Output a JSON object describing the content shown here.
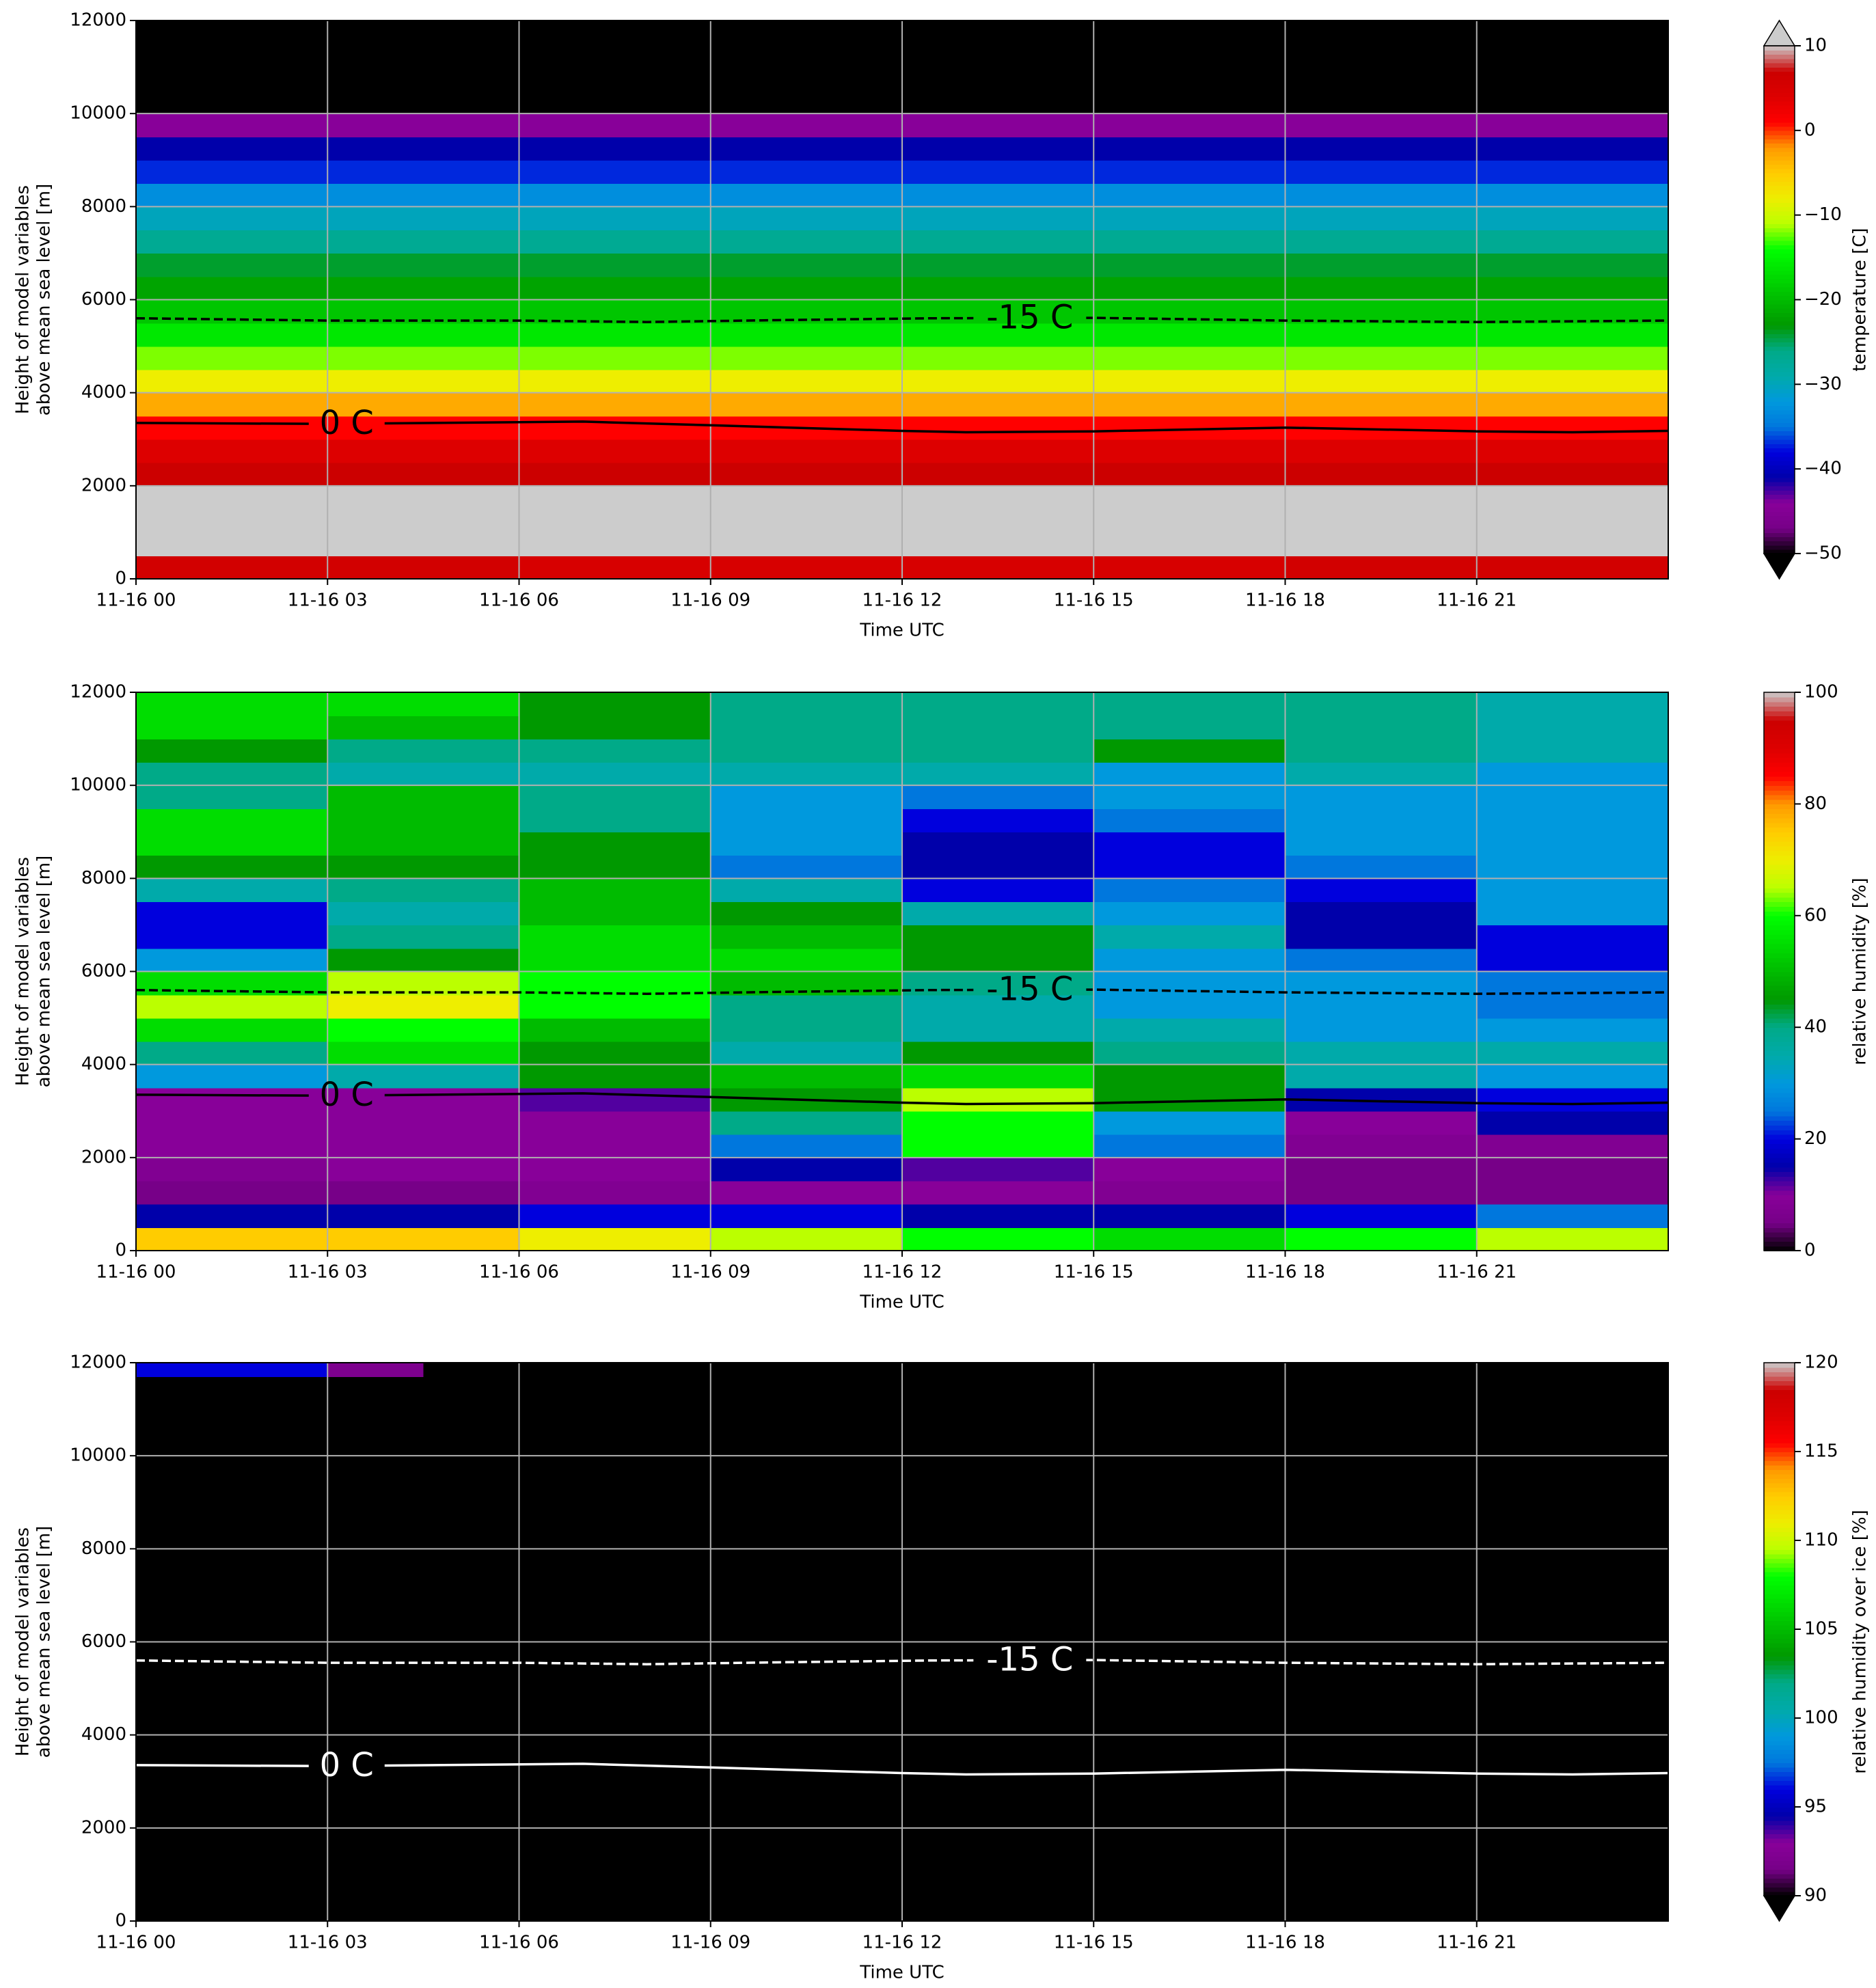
{
  "chart_data": [
    {
      "type": "heatmap",
      "colormap": "nipy_spectral",
      "extend": "both",
      "under_color": "#000000",
      "over_color": "#cccccc",
      "xlabel": "Time UTC",
      "ylabel": [
        "Height of model variables",
        "above mean sea level [m]"
      ],
      "clabel": "temperature [C]",
      "clim": [
        -50,
        10
      ],
      "cticks": [
        {
          "value": -50,
          "label": "−50"
        },
        {
          "value": -40,
          "label": "−40"
        },
        {
          "value": -30,
          "label": "−30"
        },
        {
          "value": -20,
          "label": "−20"
        },
        {
          "value": -10,
          "label": "−10"
        },
        0,
        10
      ],
      "xlim": [
        0,
        24
      ],
      "xticks": [
        {
          "value": 0,
          "label": "11-16 00"
        },
        {
          "value": 3,
          "label": "11-16 03"
        },
        {
          "value": 6,
          "label": "11-16 06"
        },
        {
          "value": 9,
          "label": "11-16 09"
        },
        {
          "value": 12,
          "label": "11-16 12"
        },
        {
          "value": 15,
          "label": "11-16 15"
        },
        {
          "value": 18,
          "label": "11-16 18"
        },
        {
          "value": 21,
          "label": "11-16 21"
        }
      ],
      "ylim": [
        0,
        12000
      ],
      "yticks": [
        0,
        2000,
        4000,
        6000,
        8000,
        10000,
        12000
      ],
      "grid": true,
      "x_edges": [
        0,
        6,
        12,
        18,
        24
      ],
      "y_edges": [
        0,
        500,
        1000,
        1500,
        2000,
        2500,
        3000,
        3500,
        4000,
        4500,
        5000,
        5500,
        6000,
        6500,
        7000,
        7500,
        8000,
        8500,
        9000,
        9500,
        10000,
        10500,
        11000,
        11500,
        12000
      ],
      "z": [
        [
          6,
          5,
          5,
          6
        ],
        [
          12,
          12,
          12,
          12
        ],
        [
          12,
          12,
          12,
          12
        ],
        [
          10.5,
          11,
          11,
          10.5
        ],
        [
          7,
          7,
          7,
          7
        ],
        [
          4,
          4,
          4,
          4
        ],
        [
          1,
          1,
          1,
          1
        ],
        [
          -3,
          -3,
          -3,
          -3
        ],
        [
          -8,
          -8,
          -8,
          -8
        ],
        [
          -12,
          -12,
          -12,
          -12
        ],
        [
          -16,
          -16,
          -16,
          -16
        ],
        [
          -19,
          -19,
          -19,
          -19
        ],
        [
          -22,
          -22,
          -22,
          -22
        ],
        [
          -24,
          -24,
          -24,
          -24
        ],
        [
          -27,
          -27,
          -27,
          -27
        ],
        [
          -30,
          -30,
          -30,
          -30
        ],
        [
          -33,
          -33,
          -33,
          -33
        ],
        [
          -37,
          -37,
          -37,
          -37
        ],
        [
          -41,
          -41,
          -41,
          -41
        ],
        [
          -44,
          -44,
          -44,
          -44
        ],
        [
          -55,
          -55,
          -55,
          -55
        ],
        [
          -55,
          -55,
          -55,
          -55
        ],
        [
          -55,
          -55,
          -55,
          -55
        ],
        [
          -55,
          -55,
          -55,
          -55
        ]
      ],
      "series": [
        {
          "name": "0 C",
          "color": "#000000",
          "linestyle": "solid",
          "x": [
            0,
            3,
            7,
            9,
            12,
            13,
            15,
            18,
            21,
            22.5,
            24
          ],
          "values": [
            3350,
            3330,
            3380,
            3300,
            3180,
            3150,
            3170,
            3250,
            3170,
            3150,
            3180
          ]
        },
        {
          "name": "-15 C",
          "color": "#000000",
          "linestyle": "dashed",
          "x": [
            0,
            3,
            6,
            8,
            10,
            12.5,
            15,
            18,
            21,
            24
          ],
          "values": [
            5600,
            5550,
            5550,
            5520,
            5560,
            5600,
            5610,
            5550,
            5520,
            5550
          ]
        }
      ]
    },
    {
      "type": "heatmap",
      "colormap": "nipy_spectral",
      "extend": "neither",
      "xlabel": "Time UTC",
      "ylabel": [
        "Height of model variables",
        "above mean sea level [m]"
      ],
      "clabel": "relative humidity [%]",
      "clim": [
        0,
        100
      ],
      "cticks": [
        0,
        20,
        40,
        60,
        80,
        100
      ],
      "xlim": [
        0,
        24
      ],
      "xticks": [
        {
          "value": 0,
          "label": "11-16 00"
        },
        {
          "value": 3,
          "label": "11-16 03"
        },
        {
          "value": 6,
          "label": "11-16 06"
        },
        {
          "value": 9,
          "label": "11-16 09"
        },
        {
          "value": 12,
          "label": "11-16 12"
        },
        {
          "value": 15,
          "label": "11-16 15"
        },
        {
          "value": 18,
          "label": "11-16 18"
        },
        {
          "value": 21,
          "label": "11-16 21"
        }
      ],
      "ylim": [
        0,
        12000
      ],
      "yticks": [
        0,
        2000,
        4000,
        6000,
        8000,
        10000,
        12000
      ],
      "grid": true,
      "x_edges": [
        0,
        3,
        6,
        9,
        12,
        15,
        18,
        21,
        24
      ],
      "y_edges": [
        0,
        500,
        1000,
        1500,
        2000,
        2500,
        3000,
        3500,
        4000,
        4500,
        5000,
        5500,
        6000,
        6500,
        7000,
        7500,
        8000,
        8500,
        9000,
        9500,
        10000,
        10500,
        11000,
        11500,
        12000
      ],
      "z": [
        [
          75,
          75,
          70,
          65,
          60,
          55,
          60,
          65
        ],
        [
          15,
          15,
          20,
          20,
          15,
          15,
          20,
          25
        ],
        [
          5,
          5,
          8,
          10,
          10,
          8,
          5,
          5
        ],
        [
          8,
          10,
          10,
          15,
          12,
          10,
          5,
          5
        ],
        [
          10,
          10,
          10,
          25,
          60,
          25,
          8,
          8
        ],
        [
          10,
          10,
          10,
          40,
          60,
          30,
          10,
          15
        ],
        [
          10,
          10,
          12,
          45,
          65,
          45,
          15,
          20
        ],
        [
          30,
          35,
          45,
          50,
          55,
          45,
          35,
          30
        ],
        [
          40,
          55,
          45,
          35,
          45,
          40,
          35,
          35
        ],
        [
          55,
          60,
          50,
          40,
          35,
          35,
          30,
          30
        ],
        [
          65,
          70,
          60,
          40,
          35,
          30,
          30,
          25
        ],
        [
          55,
          65,
          60,
          50,
          40,
          30,
          30,
          25
        ],
        [
          30,
          45,
          55,
          55,
          45,
          30,
          25,
          20
        ],
        [
          20,
          40,
          55,
          50,
          45,
          35,
          15,
          20
        ],
        [
          20,
          35,
          50,
          45,
          35,
          30,
          15,
          30
        ],
        [
          35,
          40,
          50,
          35,
          20,
          25,
          20,
          30
        ],
        [
          45,
          45,
          45,
          25,
          15,
          20,
          25,
          30
        ],
        [
          55,
          50,
          45,
          30,
          15,
          20,
          30,
          30
        ],
        [
          55,
          50,
          40,
          30,
          20,
          25,
          30,
          30
        ],
        [
          40,
          50,
          40,
          30,
          25,
          30,
          30,
          30
        ],
        [
          40,
          35,
          35,
          35,
          35,
          30,
          35,
          30
        ],
        [
          45,
          40,
          40,
          40,
          40,
          45,
          40,
          35
        ],
        [
          55,
          50,
          45,
          40,
          40,
          40,
          40,
          35
        ],
        [
          55,
          55,
          45,
          40,
          40,
          40,
          40,
          35
        ]
      ],
      "series": [
        {
          "name": "0 C",
          "color": "#000000",
          "linestyle": "solid",
          "x": [
            0,
            3,
            7,
            9,
            12,
            13,
            15,
            18,
            21,
            22.5,
            24
          ],
          "values": [
            3350,
            3330,
            3380,
            3300,
            3180,
            3150,
            3170,
            3250,
            3170,
            3150,
            3180
          ]
        },
        {
          "name": "-15 C",
          "color": "#000000",
          "linestyle": "dashed",
          "x": [
            0,
            3,
            6,
            8,
            10,
            12.5,
            15,
            18,
            21,
            24
          ],
          "values": [
            5600,
            5550,
            5550,
            5520,
            5560,
            5600,
            5610,
            5550,
            5520,
            5550
          ]
        }
      ]
    },
    {
      "type": "heatmap",
      "colormap": "nipy_spectral",
      "extend": "min",
      "under_color": "#000000",
      "xlabel": "Time UTC",
      "ylabel": [
        "Height of model variables",
        "above mean sea level [m]"
      ],
      "clabel": "relative humidity over ice [%]",
      "clim": [
        90,
        120
      ],
      "cticks": [
        90,
        95,
        100,
        105,
        110,
        115,
        120
      ],
      "xlim": [
        0,
        24
      ],
      "xticks": [
        {
          "value": 0,
          "label": "11-16 00"
        },
        {
          "value": 3,
          "label": "11-16 03"
        },
        {
          "value": 6,
          "label": "11-16 06"
        },
        {
          "value": 9,
          "label": "11-16 09"
        },
        {
          "value": 12,
          "label": "11-16 12"
        },
        {
          "value": 15,
          "label": "11-16 15"
        },
        {
          "value": 18,
          "label": "11-16 18"
        },
        {
          "value": 21,
          "label": "11-16 21"
        }
      ],
      "ylim": [
        0,
        12000
      ],
      "yticks": [
        0,
        2000,
        4000,
        6000,
        8000,
        10000,
        12000
      ],
      "grid": true,
      "x_edges": [
        0,
        3,
        4.5,
        24
      ],
      "y_edges": [
        0,
        11700,
        12000
      ],
      "z": [
        [
          50,
          50,
          50
        ],
        [
          96,
          92,
          50
        ]
      ],
      "series": [
        {
          "name": "0 C",
          "color": "#ffffff",
          "linestyle": "solid",
          "x": [
            0,
            3,
            7,
            9,
            12,
            13,
            15,
            18,
            21,
            22.5,
            24
          ],
          "values": [
            3350,
            3330,
            3380,
            3300,
            3180,
            3150,
            3170,
            3250,
            3170,
            3150,
            3180
          ]
        },
        {
          "name": "-15 C",
          "color": "#ffffff",
          "linestyle": "dashed",
          "x": [
            0,
            3,
            6,
            8,
            10,
            12.5,
            15,
            18,
            21,
            24
          ],
          "values": [
            5600,
            5550,
            5550,
            5520,
            5560,
            5600,
            5610,
            5550,
            5520,
            5550
          ]
        }
      ]
    }
  ]
}
